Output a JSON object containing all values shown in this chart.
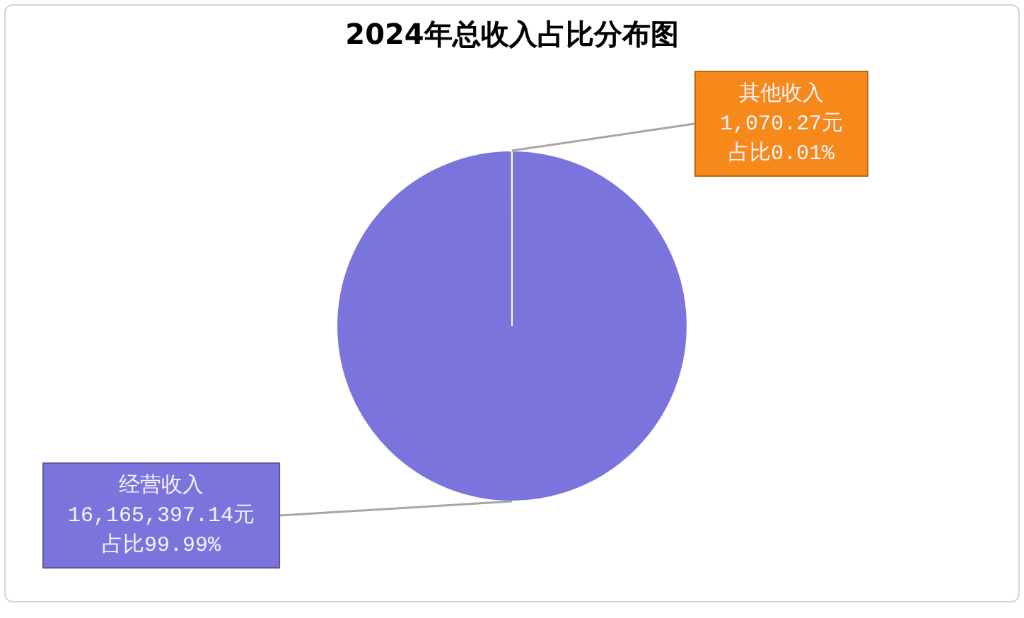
{
  "chart_data": {
    "type": "pie",
    "title": "2024年总收入占比分布图",
    "categories": [
      "经营收入",
      "其他收入"
    ],
    "values": [
      16165397.14,
      1070.27
    ],
    "colors": [
      "#7b74dc",
      "#f7891a"
    ],
    "value_labels": [
      "16,165,397.14元占比99.99%",
      "1,070.27元占比0.01%"
    ]
  }
}
